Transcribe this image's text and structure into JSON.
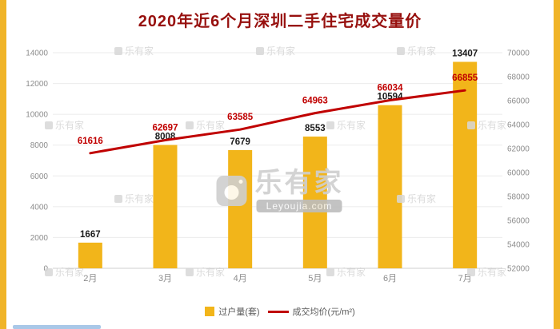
{
  "page": {
    "title": "2020年近6个月深圳二手住宅成交量价"
  },
  "watermark": {
    "brand": "乐有家",
    "domain": "Leyoujia.com"
  },
  "colors": {
    "bar": "#F2B51A",
    "line": "#C00000",
    "title": "#97100E",
    "axis_text": "#8c8c8c",
    "bar_label": "#1a1a1a",
    "border": "#F0B428"
  },
  "chart_data": {
    "type": "bar",
    "title": "2020年近6个月深圳二手住宅成交量价",
    "categories": [
      "2月",
      "3月",
      "4月",
      "5月",
      "6月",
      "7月"
    ],
    "series": [
      {
        "name": "过户量(套)",
        "type": "bar",
        "axis": "left",
        "color": "#F2B51A",
        "values": [
          1667,
          8008,
          7679,
          8553,
          10594,
          13407
        ]
      },
      {
        "name": "成交均价(元/m²)",
        "type": "line",
        "axis": "right",
        "color": "#C00000",
        "values": [
          61616,
          62697,
          63585,
          64963,
          66034,
          66855
        ]
      }
    ],
    "left_axis": {
      "min": 0,
      "max": 14000,
      "step": 2000
    },
    "right_axis": {
      "min": 52000,
      "max": 70000,
      "step": 2000
    },
    "grid": true,
    "legend_position": "bottom"
  }
}
